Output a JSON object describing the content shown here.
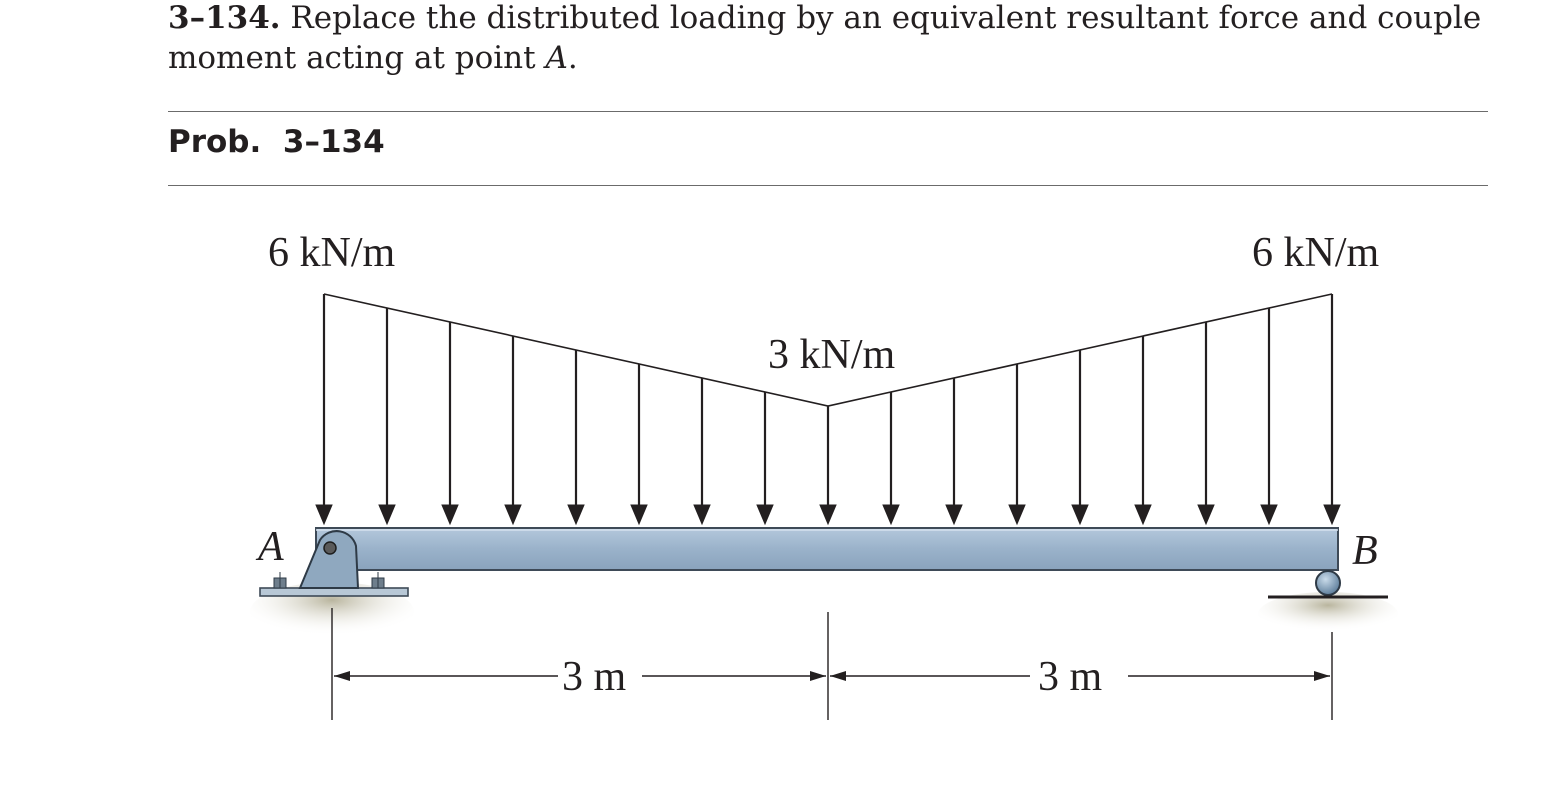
{
  "problem": {
    "number": "3–134.",
    "text_before": " Replace the distributed loading by an equivalent resultant force and couple moment acting at point ",
    "point": "A",
    "text_after": "."
  },
  "caption": {
    "prefix": "Prob.",
    "number": "3–134"
  },
  "figure": {
    "load_left": "6 kN/m",
    "load_mid": "3 kN/m",
    "load_right": "6 kN/m",
    "support_left": "A",
    "support_right": "B",
    "dim_left": "3 m",
    "dim_right": "3 m",
    "colors": {
      "beam": "#9cb4cc",
      "beam_edge": "#3e4a57",
      "support": "#8fa8bf",
      "ground_shadow": "#c6c2ad",
      "ink": "#231f20"
    }
  }
}
